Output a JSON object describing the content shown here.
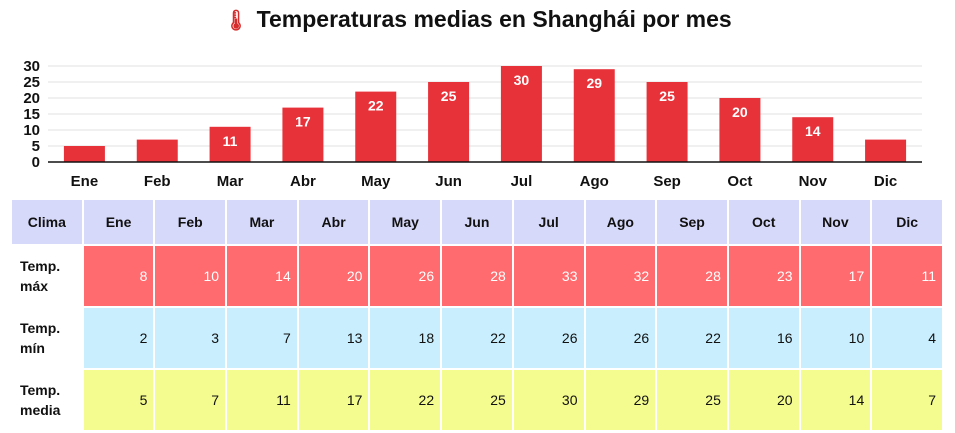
{
  "title": "Temperaturas medias en Shanghái por mes",
  "title_icon": "thermometer-icon",
  "colors": {
    "bar": "#e8323a",
    "header": "#d7d9fb",
    "max_row": "#ff6b6e",
    "min_row": "#c9eefd",
    "mean_row": "#f4fb8f"
  },
  "chart_data": {
    "type": "bar",
    "title": "Temperaturas medias en Shanghái por mes",
    "categories": [
      "Ene",
      "Feb",
      "Mar",
      "Abr",
      "May",
      "Jun",
      "Jul",
      "Ago",
      "Sep",
      "Oct",
      "Nov",
      "Dic"
    ],
    "values": [
      5,
      7,
      11,
      17,
      22,
      25,
      30,
      29,
      25,
      20,
      14,
      7
    ],
    "data_labels": [
      "",
      "",
      "11",
      "17",
      "22",
      "25",
      "30",
      "29",
      "25",
      "20",
      "14",
      ""
    ],
    "yticks": [
      0,
      5,
      10,
      15,
      20,
      25,
      30
    ],
    "ylim": [
      0,
      30
    ],
    "grid": true,
    "legend": "none"
  },
  "table": {
    "corner": "Clima",
    "months": [
      "Ene",
      "Feb",
      "Mar",
      "Abr",
      "May",
      "Jun",
      "Jul",
      "Ago",
      "Sep",
      "Oct",
      "Nov",
      "Dic"
    ],
    "rows": [
      {
        "label_1": "Temp.",
        "label_2": "máx",
        "values": [
          "8",
          "10",
          "14",
          "20",
          "26",
          "28",
          "33",
          "32",
          "28",
          "23",
          "17",
          "11"
        ]
      },
      {
        "label_1": "Temp.",
        "label_2": "mín",
        "values": [
          "2",
          "3",
          "7",
          "13",
          "18",
          "22",
          "26",
          "26",
          "22",
          "16",
          "10",
          "4"
        ]
      },
      {
        "label_1": "Temp.",
        "label_2": "media",
        "values": [
          "5",
          "7",
          "11",
          "17",
          "22",
          "25",
          "30",
          "29",
          "25",
          "20",
          "14",
          "7"
        ]
      }
    ]
  }
}
